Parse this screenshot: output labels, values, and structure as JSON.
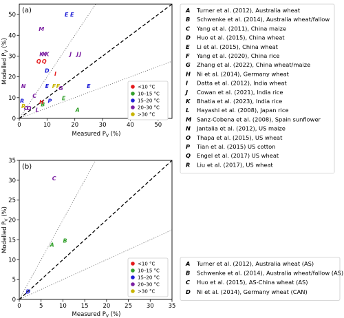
{
  "chart_data": [
    {
      "panel": "(a)",
      "type": "scatter",
      "xlabel": "Measured P_V (%)",
      "ylabel": "Modelled P_V (%)",
      "xlim": [
        0,
        55
      ],
      "ylim": [
        0,
        55
      ],
      "xticks": [
        0,
        10,
        20,
        30,
        40,
        50
      ],
      "yticks": [
        0,
        10,
        20,
        30,
        40,
        50
      ],
      "reference_lines": [
        {
          "style": "dashed",
          "slope": 1
        },
        {
          "style": "dotted",
          "slope": 2
        },
        {
          "style": "dotted",
          "slope": 0.5
        }
      ],
      "temperature_legend": [
        {
          "label": "<10 °C",
          "color": "#e41a1c"
        },
        {
          "label": "10–15 °C",
          "color": "#33a02c"
        },
        {
          "label": "15–20 °C",
          "color": "#1f1fd6"
        },
        {
          "label": "20–30 °C",
          "color": "#7b1fa2"
        },
        {
          "label": ">30 °C",
          "color": "#c8b400"
        }
      ],
      "points": [
        {
          "code": "A",
          "x": 21.0,
          "y": 4.2,
          "color": "#33a02c"
        },
        {
          "code": "B",
          "x": 8.5,
          "y": 6.8,
          "color": "#33a02c"
        },
        {
          "code": "E",
          "x": 16.0,
          "y": 9.8,
          "color": "#33a02c"
        },
        {
          "code": "C",
          "x": 5.5,
          "y": 11.0,
          "color": "#7b1fa2"
        },
        {
          "code": "D",
          "x": 10.0,
          "y": 23.0,
          "color": "#1f1fd6"
        },
        {
          "code": "E",
          "x": 10.0,
          "y": 15.5,
          "color": "#1f1fd6"
        },
        {
          "code": "E",
          "x": 25.0,
          "y": 15.5,
          "color": "#1f1fd6"
        },
        {
          "code": "E",
          "x": 17.0,
          "y": 50.0,
          "color": "#1f1fd6"
        },
        {
          "code": "E",
          "x": 19.0,
          "y": 50.0,
          "color": "#1f1fd6"
        },
        {
          "code": "F",
          "x": 12.5,
          "y": 15.5,
          "color": "#c8b400"
        },
        {
          "code": "F",
          "x": 14.0,
          "y": 15.5,
          "color": "#c8b400"
        },
        {
          "code": "G",
          "x": 15.0,
          "y": 14.5,
          "color": "#7b1fa2"
        },
        {
          "code": "H",
          "x": 8.0,
          "y": 8.0,
          "color": "#e41a1c"
        },
        {
          "code": "I",
          "x": 13.0,
          "y": 21.5,
          "color": "#e41a1c"
        },
        {
          "code": "J",
          "x": 18.5,
          "y": 31.0,
          "color": "#7b1fa2"
        },
        {
          "code": "J",
          "x": 21.0,
          "y": 31.0,
          "color": "#7b1fa2"
        },
        {
          "code": "J",
          "x": 22.0,
          "y": 31.0,
          "color": "#7b1fa2"
        },
        {
          "code": "K",
          "x": 8.0,
          "y": 31.0,
          "color": "#7b1fa2"
        },
        {
          "code": "K",
          "x": 9.0,
          "y": 31.0,
          "color": "#7b1fa2"
        },
        {
          "code": "K",
          "x": 10.0,
          "y": 31.0,
          "color": "#7b1fa2"
        },
        {
          "code": "L",
          "x": 6.5,
          "y": 4.2,
          "color": "#7b1fa2"
        },
        {
          "code": "M",
          "x": 8.0,
          "y": 43.0,
          "color": "#7b1fa2"
        },
        {
          "code": "N",
          "x": 1.5,
          "y": 15.5,
          "color": "#7b1fa2"
        },
        {
          "code": "O",
          "x": 2.5,
          "y": 5.0,
          "color": "#7b1fa2"
        },
        {
          "code": "O",
          "x": 3.5,
          "y": 5.0,
          "color": "#7b1fa2"
        },
        {
          "code": "P",
          "x": 11.0,
          "y": 8.5,
          "color": "#1f1fd6"
        },
        {
          "code": "Q",
          "x": 7.0,
          "y": 27.5,
          "color": "#e41a1c"
        },
        {
          "code": "Q",
          "x": 9.0,
          "y": 27.5,
          "color": "#e41a1c"
        },
        {
          "code": "R",
          "x": 1.0,
          "y": 8.5,
          "color": "#1f1fd6"
        },
        {
          "code": "R",
          "x": 1.5,
          "y": 6.0,
          "color": "#c8b400"
        }
      ]
    },
    {
      "panel": "(b)",
      "type": "scatter",
      "xlabel": "Measured P_V (%)",
      "ylabel": "Modelled P_V (%)",
      "xlim": [
        0,
        35
      ],
      "ylim": [
        0,
        35
      ],
      "xticks": [
        0,
        5,
        10,
        15,
        20,
        25,
        30,
        35
      ],
      "yticks": [
        0,
        5,
        10,
        15,
        20,
        25,
        30,
        35
      ],
      "reference_lines": [
        {
          "style": "dashed",
          "slope": 1
        },
        {
          "style": "dotted",
          "slope": 2
        },
        {
          "style": "dotted",
          "slope": 0.5
        }
      ],
      "temperature_legend": [
        {
          "label": "<10 °C",
          "color": "#e41a1c"
        },
        {
          "label": "10–15 °C",
          "color": "#33a02c"
        },
        {
          "label": "15–20 °C",
          "color": "#1f1fd6"
        },
        {
          "label": "20–30 °C",
          "color": "#7b1fa2"
        },
        {
          "label": ">30 °C",
          "color": "#c8b400"
        }
      ],
      "points": [
        {
          "code": "A",
          "x": 7.5,
          "y": 13.8,
          "color": "#33a02c"
        },
        {
          "code": "B",
          "x": 10.5,
          "y": 14.8,
          "color": "#33a02c"
        },
        {
          "code": "C",
          "x": 8.0,
          "y": 30.5,
          "color": "#7b1fa2"
        },
        {
          "code": "D",
          "x": 2.0,
          "y": 2.0,
          "color": "#1f1fd6"
        }
      ]
    }
  ],
  "legend_a": [
    {
      "key": "A",
      "text": "Turner et al. (2012), Australia wheat"
    },
    {
      "key": "B",
      "text": "Schwenke et al. (2014), Australia wheat/fallow"
    },
    {
      "key": "C",
      "text": "Yang et al. (2011), China maize"
    },
    {
      "key": "D",
      "text": "Huo et al. (2015), China wheat"
    },
    {
      "key": "E",
      "text": "Li et al. (2015), China wheat"
    },
    {
      "key": "F",
      "text": "Yang et al. (2020), China rice"
    },
    {
      "key": "G",
      "text": "Zhang et al. (2022), China wheat/maize"
    },
    {
      "key": "H",
      "text": "Ni et al. (2014), Germany wheat"
    },
    {
      "key": "I",
      "text": "Datta et al. (2012), India wheat"
    },
    {
      "key": "J",
      "text": "Cowan et al. (2021), India rice"
    },
    {
      "key": "K",
      "text": "Bhatia et al. (2023), India rice"
    },
    {
      "key": "L",
      "text": "Hayashi et al. (2008), Japan rice"
    },
    {
      "key": "M",
      "text": "Sanz-Cobena et al. (2008), Spain sunflower"
    },
    {
      "key": "N",
      "text": "Jantalia et al. (2012), US maize"
    },
    {
      "key": "O",
      "text": "Thapa et al. (2015), US wheat"
    },
    {
      "key": "P",
      "text": "Tian et al. (2015) US cotton"
    },
    {
      "key": "Q",
      "text": "Engel et al. (2017) US wheat"
    },
    {
      "key": "R",
      "text": "Liu et al. (2017), US wheat"
    }
  ],
  "legend_b": [
    {
      "key": "A",
      "text": "Turner et al. (2012), Australia wheat (AS)"
    },
    {
      "key": "B",
      "text": "Schwenke et al. (2014), Australia wheat/fallow (AS)"
    },
    {
      "key": "C",
      "text": "Huo et al. (2015), AS-China wheat (AS)"
    },
    {
      "key": "D",
      "text": "Ni et al. (2014), Germany wheat (CAN)"
    }
  ]
}
